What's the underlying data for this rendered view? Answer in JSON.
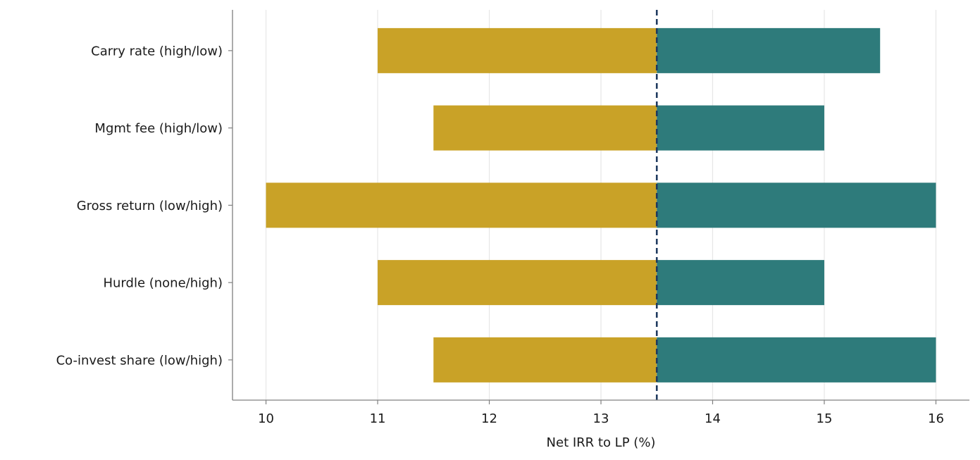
{
  "chart_data": {
    "type": "bar",
    "orientation": "horizontal",
    "chart_style": "tornado",
    "categories": [
      "Carry rate (high/low)",
      "Mgmt fee (high/low)",
      "Gross return (low/high)",
      "Hurdle (none/high)",
      "Co-invest share (low/high)"
    ],
    "baseline": 13.5,
    "series": [
      {
        "values": [
          11.0,
          11.5,
          10.0,
          11.0,
          11.5
        ],
        "color": "#c9a227"
      },
      {
        "values": [
          15.5,
          15.0,
          16.0,
          15.0,
          16.0
        ],
        "color": "#2e7b7b"
      }
    ],
    "xlabel": "Net IRR to LP (%)",
    "ylabel": "",
    "title": "",
    "xlim": [
      9.7,
      16.3
    ],
    "xticks": [
      10,
      11,
      12,
      13,
      14,
      15,
      16
    ],
    "grid": "vertical",
    "legend": "none",
    "baseline_color": "#1f3a5f",
    "grid_color": "#e6e6e6",
    "axis_color": "#808080"
  }
}
